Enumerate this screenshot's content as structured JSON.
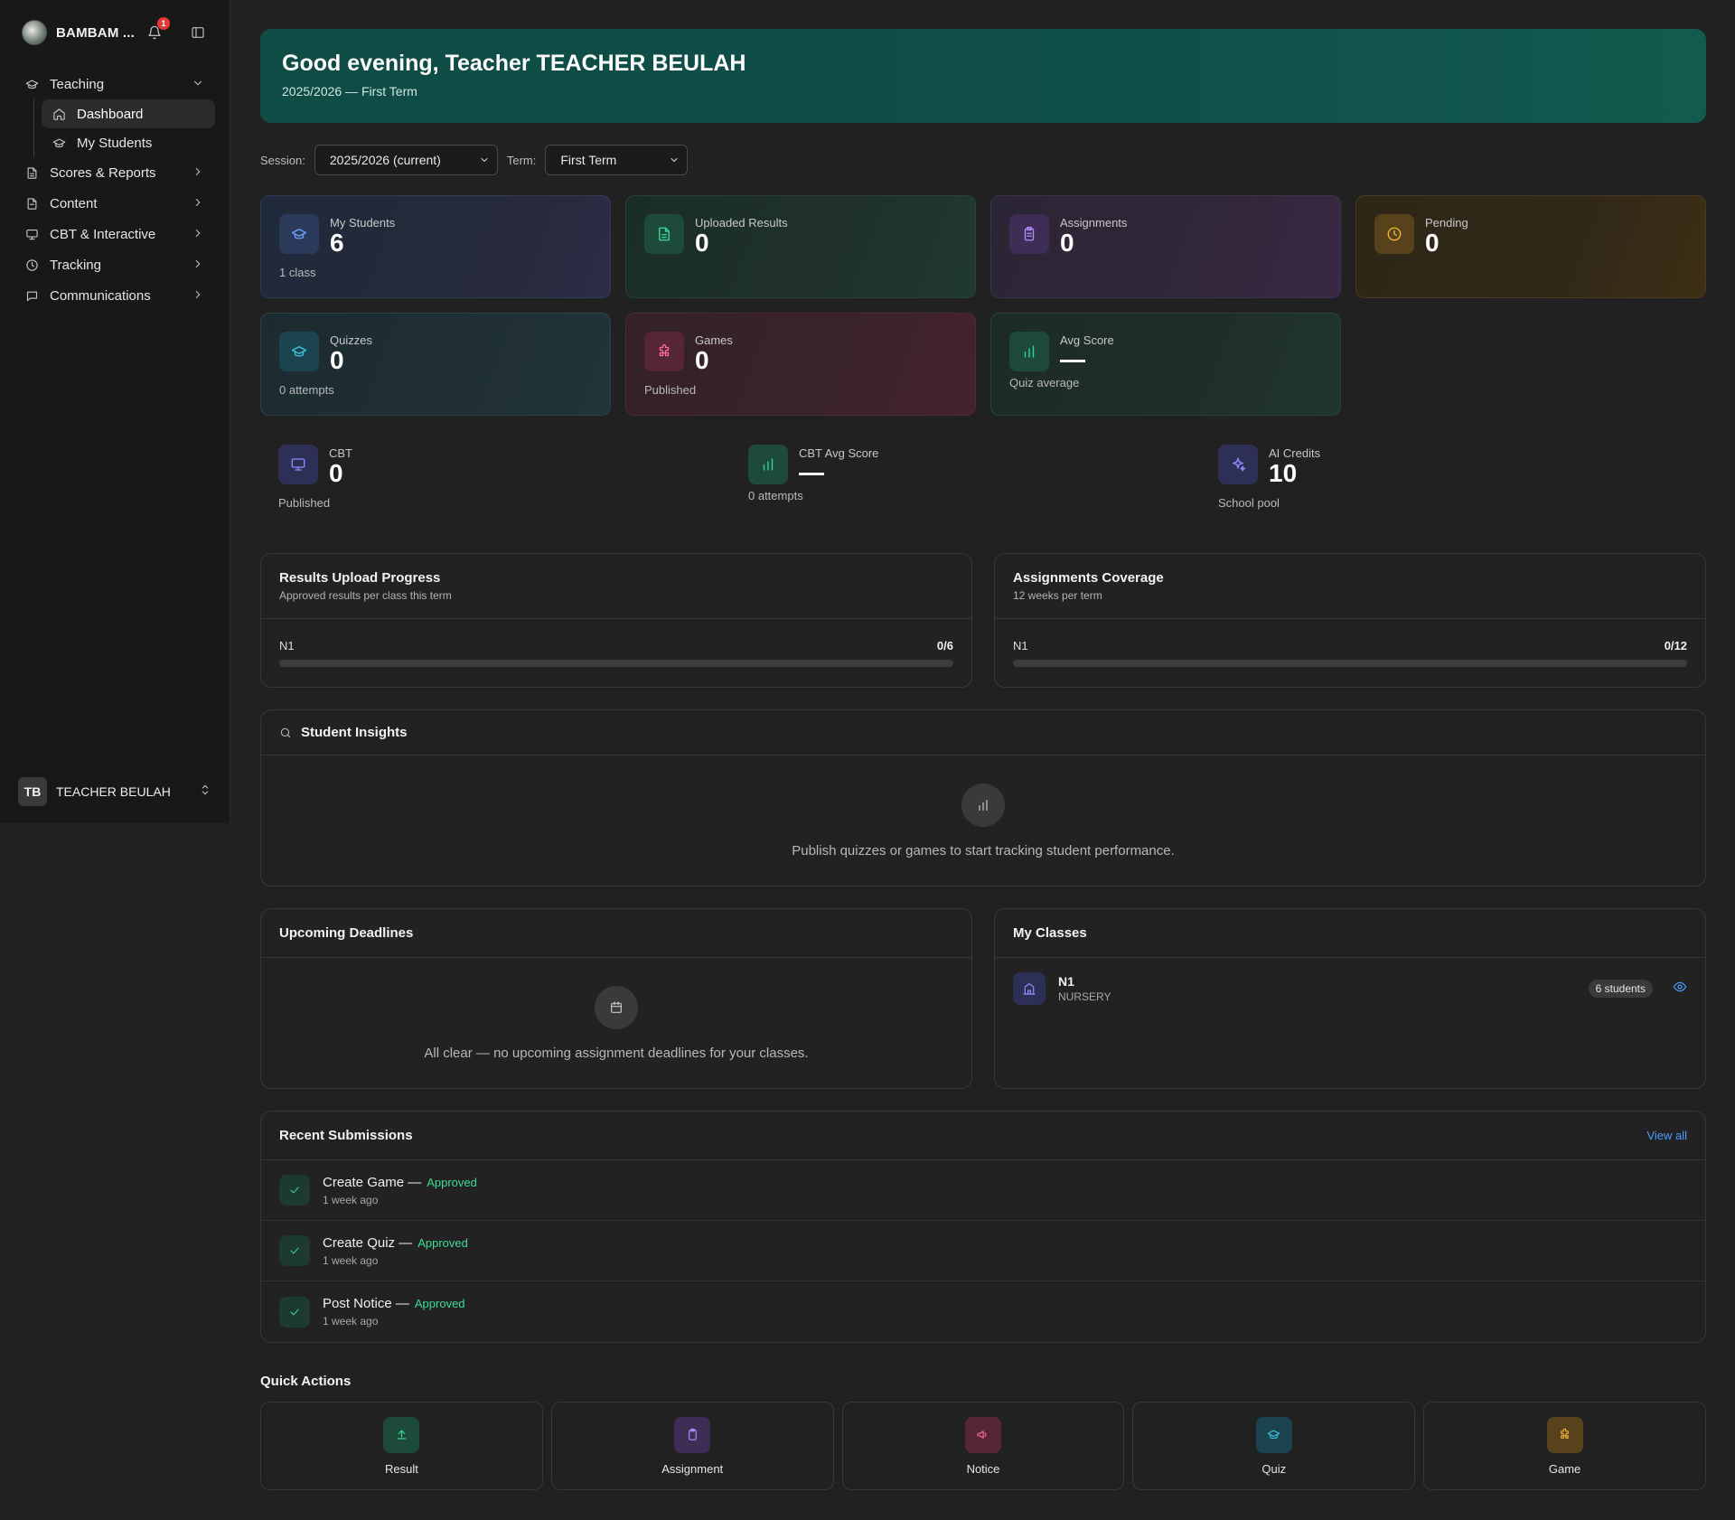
{
  "sidebar": {
    "school_name": "BAMBAM ...",
    "notification_count": "1",
    "nav": {
      "teaching": "Teaching",
      "dashboard": "Dashboard",
      "my_students": "My Students",
      "scores_reports": "Scores & Reports",
      "content": "Content",
      "cbt_interactive": "CBT & Interactive",
      "tracking": "Tracking",
      "communications": "Communications"
    },
    "user": {
      "initials": "TB",
      "name": "TEACHER BEULAH"
    }
  },
  "hero": {
    "greeting": "Good evening, Teacher TEACHER BEULAH",
    "session_term": "2025/2026 — First Term"
  },
  "filters": {
    "session_label": "Session:",
    "session_value": "2025/2026 (current)",
    "term_label": "Term:",
    "term_value": "First Term"
  },
  "stats": {
    "my_students": {
      "title": "My Students",
      "value": "6",
      "sub": "1 class"
    },
    "uploaded_results": {
      "title": "Uploaded Results",
      "value": "0"
    },
    "assignments": {
      "title": "Assignments",
      "value": "0"
    },
    "pending": {
      "title": "Pending",
      "value": "0"
    },
    "quizzes": {
      "title": "Quizzes",
      "value": "0",
      "sub": "0 attempts"
    },
    "games": {
      "title": "Games",
      "value": "0",
      "sub": "Published"
    },
    "avg_score": {
      "title": "Avg Score",
      "sub": "Quiz average"
    }
  },
  "mini_stats": {
    "cbt": {
      "title": "CBT",
      "value": "0",
      "sub": "Published"
    },
    "cbt_avg": {
      "title": "CBT Avg Score",
      "sub": "0 attempts"
    },
    "ai_credits": {
      "title": "AI Credits",
      "value": "10",
      "sub": "School pool"
    }
  },
  "results_progress": {
    "title": "Results Upload Progress",
    "subtitle": "Approved results per class this term",
    "class": "N1",
    "count": "0/6",
    "fraction": 0
  },
  "assignments_coverage": {
    "title": "Assignments Coverage",
    "subtitle": "12 weeks per term",
    "class": "N1",
    "count": "0/12",
    "fraction": 0
  },
  "insights": {
    "title": "Student Insights",
    "empty": "Publish quizzes or games to start tracking student performance."
  },
  "deadlines": {
    "title": "Upcoming Deadlines",
    "empty": "All clear — no upcoming assignment deadlines for your classes."
  },
  "classes": {
    "title": "My Classes",
    "items": [
      {
        "name": "N1",
        "level": "NURSERY",
        "count": "6 students"
      }
    ]
  },
  "recent": {
    "title": "Recent Submissions",
    "view_all": "View all",
    "items": [
      {
        "title": "Create Game —",
        "status": "Approved",
        "time": "1 week ago"
      },
      {
        "title": "Create Quiz —",
        "status": "Approved",
        "time": "1 week ago"
      },
      {
        "title": "Post Notice —",
        "status": "Approved",
        "time": "1 week ago"
      }
    ]
  },
  "quick_actions": {
    "title": "Quick Actions",
    "items": [
      {
        "label": "Result",
        "icon": "upload-icon"
      },
      {
        "label": "Assignment",
        "icon": "clipboard-icon"
      },
      {
        "label": "Notice",
        "icon": "megaphone-icon"
      },
      {
        "label": "Quiz",
        "icon": "graduation-cap-icon"
      },
      {
        "label": "Game",
        "icon": "puzzle-icon"
      }
    ]
  }
}
